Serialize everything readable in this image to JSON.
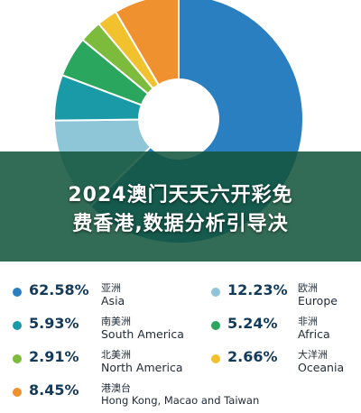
{
  "overlay": {
    "line1": "2024澳门天天六开彩免",
    "line2": "费香港,数据分析引导决"
  },
  "chart_data": {
    "type": "pie",
    "donut": true,
    "title": "",
    "slices": [
      {
        "pct_label": "62.58%",
        "value": 62.58,
        "name_zh": "亚洲",
        "name_en": "Asia",
        "color": "#2a7fc0"
      },
      {
        "pct_label": "12.23%",
        "value": 12.23,
        "name_zh": "欧洲",
        "name_en": "Europe",
        "color": "#8ec6d8"
      },
      {
        "pct_label": "5.93%",
        "value": 5.93,
        "name_zh": "南美洲",
        "name_en": "South America",
        "color": "#1a9aa6"
      },
      {
        "pct_label": "5.24%",
        "value": 5.24,
        "name_zh": "非洲",
        "name_en": "Africa",
        "color": "#2aa65e"
      },
      {
        "pct_label": "2.91%",
        "value": 2.91,
        "name_zh": "北美洲",
        "name_en": "North America",
        "color": "#7cbb3b"
      },
      {
        "pct_label": "2.66%",
        "value": 2.66,
        "name_zh": "大洋洲",
        "name_en": "Oceania",
        "color": "#f2c12e"
      },
      {
        "pct_label": "8.45%",
        "value": 8.45,
        "name_zh": "港澳台",
        "name_en": "Hong Kong, Macao and Taiwan",
        "color": "#f0912f"
      }
    ]
  }
}
